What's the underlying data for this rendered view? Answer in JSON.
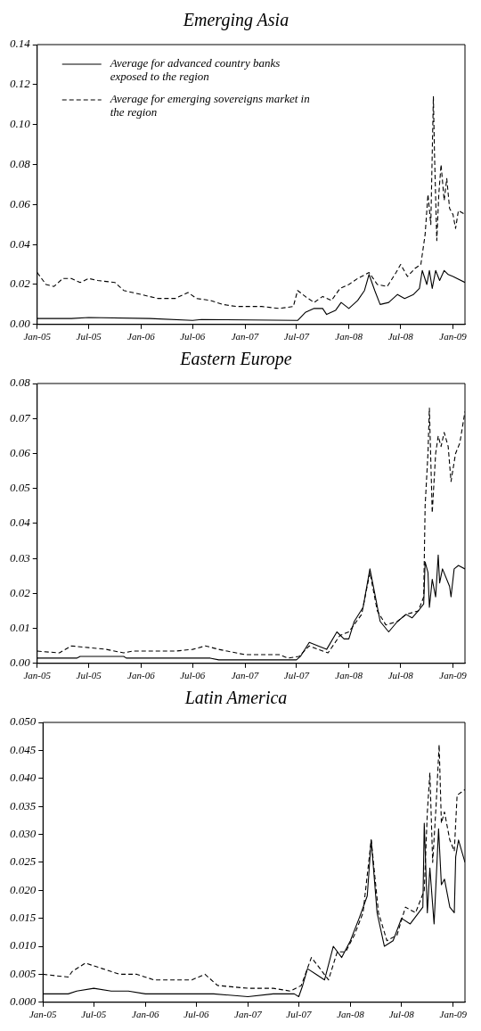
{
  "chart_data": [
    {
      "type": "line",
      "title": "Emerging Asia",
      "legend": "top left",
      "xlim": [
        "2005-01-01",
        "2009-02-12"
      ],
      "ylim": [
        0,
        0.14
      ],
      "xticks": [
        {
          "value": "2005-01-01",
          "label": "Jan-05"
        },
        {
          "value": "2005-07-01",
          "label": "Jul-05"
        },
        {
          "value": "2006-01-01",
          "label": "Jan-06"
        },
        {
          "value": "2006-07-01",
          "label": "Jul-06"
        },
        {
          "value": "2007-01-01",
          "label": "Jan-07"
        },
        {
          "value": "2007-07-01",
          "label": "Jul-07"
        },
        {
          "value": "2008-01-01",
          "label": "Jan-08"
        },
        {
          "value": "2008-07-01",
          "label": "Jul-08"
        },
        {
          "value": "2009-01-01",
          "label": "Jan-09"
        }
      ],
      "yticks": [
        {
          "value": 0,
          "label": "0.00"
        },
        {
          "value": 0.02,
          "label": "0.02"
        },
        {
          "value": 0.04,
          "label": "0.04"
        },
        {
          "value": 0.06,
          "label": "0.06"
        },
        {
          "value": 0.08,
          "label": "0.08"
        },
        {
          "value": 0.1,
          "label": "0.10"
        },
        {
          "value": 0.12,
          "label": "0.12"
        },
        {
          "value": 0.14,
          "label": "0.14"
        }
      ],
      "series": [
        {
          "name": "Average for advanced country banks exposed to the region",
          "color": "#000000",
          "line_style": "solid",
          "x": [
            "2005-01-01",
            "2005-05-01",
            "2005-07-01",
            "2006-02-01",
            "2006-07-01",
            "2006-08-01",
            "2007-07-05",
            "2007-08-01",
            "2007-09-01",
            "2007-10-01",
            "2007-10-15",
            "2007-11-15",
            "2007-12-05",
            "2008-01-01",
            "2008-02-01",
            "2008-02-25",
            "2008-03-12",
            "2008-04-01",
            "2008-04-20",
            "2008-05-20",
            "2008-06-20",
            "2008-07-15",
            "2008-08-15",
            "2008-09-05",
            "2008-09-15",
            "2008-10-01",
            "2008-10-10",
            "2008-10-20",
            "2008-11-01",
            "2008-11-15",
            "2008-12-01",
            "2008-12-15",
            "2009-01-01",
            "2009-02-12"
          ],
          "values": [
            0.003,
            0.003,
            0.0035,
            0.003,
            0.002,
            0.0025,
            0.002,
            0.006,
            0.008,
            0.008,
            0.005,
            0.007,
            0.011,
            0.008,
            0.012,
            0.017,
            0.025,
            0.017,
            0.01,
            0.011,
            0.015,
            0.013,
            0.015,
            0.018,
            0.027,
            0.02,
            0.027,
            0.018,
            0.027,
            0.022,
            0.027,
            0.025,
            0.024,
            0.021
          ]
        },
        {
          "name": "Average for emerging sovereigns market in the region",
          "color": "#000000",
          "line_style": "dashed",
          "x": [
            "2005-01-01",
            "2005-02-01",
            "2005-03-01",
            "2005-04-01",
            "2005-05-01",
            "2005-06-01",
            "2005-07-01",
            "2005-08-01",
            "2005-10-01",
            "2005-11-01",
            "2006-01-01",
            "2006-03-01",
            "2006-05-01",
            "2006-06-15",
            "2006-07-15",
            "2006-09-01",
            "2006-10-15",
            "2006-12-01",
            "2007-03-01",
            "2007-05-01",
            "2007-06-20",
            "2007-07-05",
            "2007-08-01",
            "2007-09-01",
            "2007-10-01",
            "2007-11-01",
            "2007-12-01",
            "2008-01-01",
            "2008-02-01",
            "2008-03-12",
            "2008-04-10",
            "2008-05-15",
            "2008-06-15",
            "2008-07-01",
            "2008-07-25",
            "2008-08-20",
            "2008-09-10",
            "2008-09-25",
            "2008-10-05",
            "2008-10-15",
            "2008-10-24",
            "2008-10-28",
            "2008-11-05",
            "2008-11-12",
            "2008-11-20",
            "2008-12-01",
            "2008-12-10",
            "2008-12-20",
            "2009-01-01",
            "2009-01-10",
            "2009-01-20",
            "2009-02-12"
          ],
          "values": [
            0.026,
            0.02,
            0.019,
            0.023,
            0.023,
            0.021,
            0.023,
            0.022,
            0.021,
            0.017,
            0.015,
            0.013,
            0.013,
            0.016,
            0.013,
            0.012,
            0.01,
            0.009,
            0.009,
            0.008,
            0.009,
            0.017,
            0.014,
            0.011,
            0.014,
            0.012,
            0.018,
            0.02,
            0.023,
            0.026,
            0.02,
            0.019,
            0.026,
            0.03,
            0.024,
            0.028,
            0.03,
            0.045,
            0.065,
            0.05,
            0.114,
            0.085,
            0.042,
            0.065,
            0.08,
            0.062,
            0.073,
            0.058,
            0.055,
            0.048,
            0.057,
            0.055
          ]
        }
      ]
    },
    {
      "type": "line",
      "title": "Eastern Europe",
      "xlim": [
        "2005-01-01",
        "2009-02-12"
      ],
      "ylim": [
        0,
        0.08
      ],
      "xticks": [
        {
          "value": "2005-01-01",
          "label": "Jan-05"
        },
        {
          "value": "2005-07-01",
          "label": "Jul-05"
        },
        {
          "value": "2006-01-01",
          "label": "Jan-06"
        },
        {
          "value": "2006-07-01",
          "label": "Jul-06"
        },
        {
          "value": "2007-01-01",
          "label": "Jan-07"
        },
        {
          "value": "2007-07-01",
          "label": "Jul-07"
        },
        {
          "value": "2008-01-01",
          "label": "Jan-08"
        },
        {
          "value": "2008-07-01",
          "label": "Jul-08"
        },
        {
          "value": "2009-01-01",
          "label": "Jan-09"
        }
      ],
      "yticks": [
        {
          "value": 0,
          "label": "0.00"
        },
        {
          "value": 0.01,
          "label": "0.01"
        },
        {
          "value": 0.02,
          "label": "0.02"
        },
        {
          "value": 0.03,
          "label": "0.03"
        },
        {
          "value": 0.04,
          "label": "0.04"
        },
        {
          "value": 0.05,
          "label": "0.05"
        },
        {
          "value": 0.06,
          "label": "0.06"
        },
        {
          "value": 0.07,
          "label": "0.07"
        },
        {
          "value": 0.08,
          "label": "0.08"
        }
      ],
      "series": [
        {
          "color": "#000000",
          "line_style": "solid",
          "x": [
            "2005-01-01",
            "2005-05-20",
            "2005-06-01",
            "2005-11-01",
            "2005-11-10",
            "2006-09-01",
            "2006-10-01",
            "2007-06-01",
            "2007-07-01",
            "2007-07-15",
            "2007-08-15",
            "2007-09-15",
            "2007-10-15",
            "2007-11-20",
            "2007-12-15",
            "2008-01-01",
            "2008-01-20",
            "2008-02-20",
            "2008-03-15",
            "2008-04-01",
            "2008-04-20",
            "2008-05-20",
            "2008-06-20",
            "2008-07-20",
            "2008-08-10",
            "2008-09-01",
            "2008-09-20",
            "2008-09-25",
            "2008-10-05",
            "2008-10-10",
            "2008-10-20",
            "2008-11-01",
            "2008-11-10",
            "2008-11-15",
            "2008-11-25",
            "2008-12-20",
            "2008-12-25",
            "2009-01-05",
            "2009-01-20",
            "2009-02-12"
          ],
          "values": [
            0.0015,
            0.0015,
            0.002,
            0.002,
            0.0015,
            0.0015,
            0.001,
            0.001,
            0.001,
            0.002,
            0.006,
            0.005,
            0.004,
            0.009,
            0.007,
            0.007,
            0.012,
            0.016,
            0.027,
            0.02,
            0.012,
            0.009,
            0.012,
            0.014,
            0.013,
            0.015,
            0.017,
            0.029,
            0.026,
            0.016,
            0.024,
            0.019,
            0.031,
            0.023,
            0.027,
            0.022,
            0.019,
            0.027,
            0.028,
            0.027
          ]
        },
        {
          "color": "#000000",
          "line_style": "dashed",
          "x": [
            "2005-01-01",
            "2005-03-20",
            "2005-05-01",
            "2005-07-01",
            "2005-09-01",
            "2005-11-01",
            "2005-12-01",
            "2006-05-01",
            "2006-07-01",
            "2006-08-15",
            "2006-10-01",
            "2006-12-01",
            "2007-01-01",
            "2007-05-01",
            "2007-06-01",
            "2007-07-10",
            "2007-08-15",
            "2007-09-15",
            "2007-10-20",
            "2007-12-01",
            "2008-01-01",
            "2008-02-15",
            "2008-03-15",
            "2008-04-10",
            "2008-05-10",
            "2008-06-20",
            "2008-07-20",
            "2008-09-01",
            "2008-09-20",
            "2008-09-25",
            "2008-10-05",
            "2008-10-10",
            "2008-10-20",
            "2008-11-01",
            "2008-11-10",
            "2008-11-20",
            "2008-12-01",
            "2008-12-15",
            "2008-12-25",
            "2009-01-10",
            "2009-01-25",
            "2009-02-12"
          ],
          "values": [
            0.0035,
            0.003,
            0.005,
            0.0045,
            0.004,
            0.003,
            0.0035,
            0.0035,
            0.004,
            0.005,
            0.004,
            0.003,
            0.0025,
            0.0025,
            0.0015,
            0.002,
            0.005,
            0.004,
            0.003,
            0.008,
            0.009,
            0.014,
            0.026,
            0.015,
            0.011,
            0.012,
            0.014,
            0.015,
            0.019,
            0.045,
            0.06,
            0.073,
            0.043,
            0.06,
            0.065,
            0.062,
            0.066,
            0.062,
            0.052,
            0.06,
            0.063,
            0.072
          ]
        }
      ]
    },
    {
      "type": "line",
      "title": "Latin America",
      "xlim": [
        "2005-01-01",
        "2009-02-12"
      ],
      "ylim": [
        0,
        0.05
      ],
      "xticks": [
        {
          "value": "2005-01-01",
          "label": "Jan-05"
        },
        {
          "value": "2005-07-01",
          "label": "Jul-05"
        },
        {
          "value": "2006-01-01",
          "label": "Jan-06"
        },
        {
          "value": "2006-07-01",
          "label": "Jul-06"
        },
        {
          "value": "2007-01-01",
          "label": "Jan-07"
        },
        {
          "value": "2007-07-01",
          "label": "Jul-07"
        },
        {
          "value": "2008-01-01",
          "label": "Jan-08"
        },
        {
          "value": "2008-07-01",
          "label": "Jul-08"
        },
        {
          "value": "2009-01-01",
          "label": "Jan-09"
        }
      ],
      "yticks": [
        {
          "value": 0,
          "label": "0.000"
        },
        {
          "value": 0.005,
          "label": "0.005"
        },
        {
          "value": 0.01,
          "label": "0.010"
        },
        {
          "value": 0.015,
          "label": "0.015"
        },
        {
          "value": 0.02,
          "label": "0.020"
        },
        {
          "value": 0.025,
          "label": "0.025"
        },
        {
          "value": 0.03,
          "label": "0.030"
        },
        {
          "value": 0.035,
          "label": "0.035"
        },
        {
          "value": 0.04,
          "label": "0.040"
        },
        {
          "value": 0.045,
          "label": "0.045"
        },
        {
          "value": 0.05,
          "label": "0.050"
        }
      ],
      "series": [
        {
          "color": "#000000",
          "line_style": "solid",
          "x": [
            "2005-01-01",
            "2005-04-01",
            "2005-05-01",
            "2005-07-01",
            "2005-09-01",
            "2005-11-01",
            "2006-01-01",
            "2006-07-01",
            "2006-09-01",
            "2007-01-01",
            "2007-04-01",
            "2007-06-15",
            "2007-07-01",
            "2007-07-15",
            "2007-08-01",
            "2007-09-01",
            "2007-10-01",
            "2007-11-01",
            "2007-12-01",
            "2008-01-01",
            "2008-02-01",
            "2008-03-01",
            "2008-03-15",
            "2008-04-05",
            "2008-05-01",
            "2008-06-01",
            "2008-07-01",
            "2008-08-01",
            "2008-09-15",
            "2008-09-20",
            "2008-10-01",
            "2008-10-10",
            "2008-10-25",
            "2008-11-10",
            "2008-11-20",
            "2008-12-01",
            "2008-12-20",
            "2009-01-05",
            "2009-01-10",
            "2009-01-20",
            "2009-02-12"
          ],
          "values": [
            0.0015,
            0.0015,
            0.002,
            0.0025,
            0.002,
            0.002,
            0.0015,
            0.0015,
            0.0015,
            0.001,
            0.0015,
            0.0015,
            0.001,
            0.003,
            0.006,
            0.005,
            0.004,
            0.01,
            0.008,
            0.011,
            0.015,
            0.019,
            0.029,
            0.016,
            0.01,
            0.011,
            0.015,
            0.014,
            0.017,
            0.032,
            0.016,
            0.024,
            0.014,
            0.031,
            0.021,
            0.022,
            0.017,
            0.016,
            0.026,
            0.029,
            0.025
          ]
        },
        {
          "color": "#000000",
          "line_style": "dashed",
          "x": [
            "2005-01-01",
            "2005-04-01",
            "2005-04-15",
            "2005-06-01",
            "2005-08-01",
            "2005-10-01",
            "2005-12-01",
            "2006-02-01",
            "2006-05-01",
            "2006-06-15",
            "2006-08-01",
            "2006-09-15",
            "2007-01-01",
            "2007-04-01",
            "2007-06-01",
            "2007-07-10",
            "2007-08-15",
            "2007-09-15",
            "2007-10-15",
            "2007-11-15",
            "2007-12-15",
            "2008-01-15",
            "2008-02-15",
            "2008-03-15",
            "2008-04-10",
            "2008-05-10",
            "2008-06-15",
            "2008-07-15",
            "2008-08-20",
            "2008-09-20",
            "2008-10-01",
            "2008-10-10",
            "2008-10-20",
            "2008-11-01",
            "2008-11-12",
            "2008-11-20",
            "2008-12-01",
            "2008-12-20",
            "2009-01-05",
            "2009-01-15",
            "2009-02-12"
          ],
          "values": [
            0.005,
            0.0045,
            0.0055,
            0.007,
            0.006,
            0.005,
            0.005,
            0.004,
            0.004,
            0.004,
            0.005,
            0.003,
            0.0025,
            0.0025,
            0.002,
            0.003,
            0.008,
            0.006,
            0.004,
            0.009,
            0.009,
            0.012,
            0.016,
            0.029,
            0.016,
            0.011,
            0.012,
            0.017,
            0.016,
            0.02,
            0.034,
            0.041,
            0.025,
            0.035,
            0.046,
            0.032,
            0.034,
            0.029,
            0.027,
            0.037,
            0.038
          ]
        }
      ]
    }
  ]
}
